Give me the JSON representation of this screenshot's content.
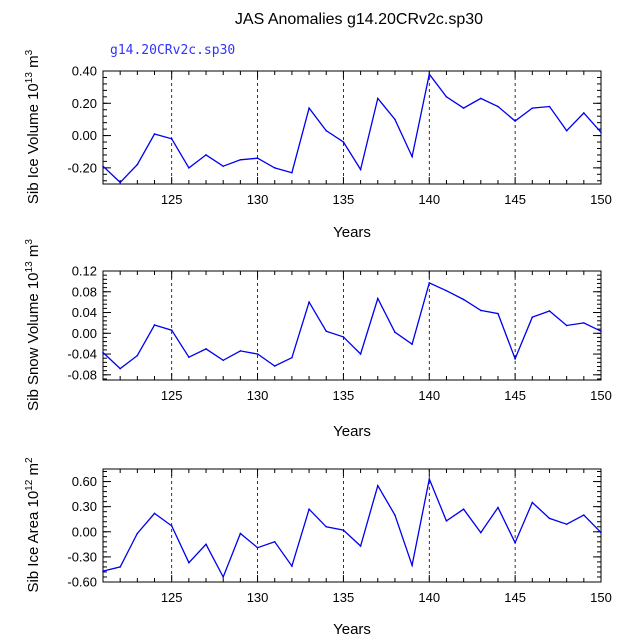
{
  "page_title": "JAS Anomalies g14.20CRv2c.sp30",
  "subtitle": "g14.20CRv2c.sp30",
  "chart_data": [
    {
      "type": "line",
      "xlabel": "Years",
      "ylabel": "Sib Ice Volume 10",
      "ylabel_exp": "13",
      "ylabel_unit": " m",
      "ylabel_unit_exp": "3",
      "xlim": [
        121,
        150
      ],
      "ylim": [
        -0.3,
        0.4
      ],
      "xticks": [
        125,
        130,
        135,
        140,
        145,
        150
      ],
      "yticks": [
        -0.2,
        0.0,
        0.2,
        0.4
      ],
      "ytick_labels": [
        "-0.20",
        "0.00",
        "0.20",
        "0.40"
      ],
      "yminor_step": 0.04,
      "vlines": [
        125,
        130,
        135,
        140,
        145
      ],
      "color": "#0000ee",
      "x": [
        121,
        122,
        123,
        124,
        125,
        126,
        127,
        128,
        129,
        130,
        131,
        132,
        133,
        134,
        135,
        136,
        137,
        138,
        139,
        140,
        141,
        142,
        143,
        144,
        145,
        146,
        147,
        148,
        149,
        150
      ],
      "values": [
        -0.19,
        -0.29,
        -0.18,
        0.01,
        -0.02,
        -0.2,
        -0.12,
        -0.19,
        -0.15,
        -0.14,
        -0.2,
        -0.23,
        0.17,
        0.03,
        -0.04,
        -0.21,
        0.23,
        0.1,
        -0.13,
        0.38,
        0.24,
        0.17,
        0.23,
        0.18,
        0.09,
        0.17,
        0.18,
        0.03,
        0.14,
        0.02
      ]
    },
    {
      "type": "line",
      "xlabel": "Years",
      "ylabel": "Sib Snow Volume 10",
      "ylabel_exp": "13",
      "ylabel_unit": " m",
      "ylabel_unit_exp": "3",
      "xlim": [
        121,
        150
      ],
      "ylim": [
        -0.09,
        0.12
      ],
      "xticks": [
        125,
        130,
        135,
        140,
        145,
        150
      ],
      "yticks": [
        -0.08,
        -0.04,
        0.0,
        0.04,
        0.08,
        0.12
      ],
      "ytick_labels": [
        "-0.08",
        "-0.04",
        "0.00",
        "0.04",
        "0.08",
        "0.12"
      ],
      "yminor_step": 0.008,
      "vlines": [
        125,
        130,
        135,
        140,
        145
      ],
      "color": "#0000ee",
      "x": [
        121,
        122,
        123,
        124,
        125,
        126,
        127,
        128,
        129,
        130,
        131,
        132,
        133,
        134,
        135,
        136,
        137,
        138,
        139,
        140,
        141,
        142,
        143,
        144,
        145,
        146,
        147,
        148,
        149,
        150
      ],
      "values": [
        -0.037,
        -0.068,
        -0.043,
        0.016,
        0.006,
        -0.046,
        -0.03,
        -0.052,
        -0.034,
        -0.04,
        -0.063,
        -0.047,
        0.06,
        0.004,
        -0.007,
        -0.04,
        0.067,
        0.002,
        -0.021,
        0.097,
        0.082,
        0.065,
        0.044,
        0.038,
        -0.049,
        0.031,
        0.043,
        0.015,
        0.02,
        0.004
      ]
    },
    {
      "type": "line",
      "xlabel": "Years",
      "ylabel": "Sib Ice Area 10",
      "ylabel_exp": "12",
      "ylabel_unit": " m",
      "ylabel_unit_exp": "2",
      "xlim": [
        121,
        150
      ],
      "ylim": [
        -0.6,
        0.75
      ],
      "xticks": [
        125,
        130,
        135,
        140,
        145,
        150
      ],
      "yticks": [
        -0.6,
        -0.3,
        0.0,
        0.3,
        0.6
      ],
      "ytick_labels": [
        "-0.60",
        "-0.30",
        "0.00",
        "0.30",
        "0.60"
      ],
      "yminor_step": 0.06,
      "vlines": [
        125,
        130,
        135,
        140,
        145
      ],
      "color": "#0000ee",
      "x": [
        121,
        122,
        123,
        124,
        125,
        126,
        127,
        128,
        129,
        130,
        131,
        132,
        133,
        134,
        135,
        136,
        137,
        138,
        139,
        140,
        141,
        142,
        143,
        144,
        145,
        146,
        147,
        148,
        149,
        150
      ],
      "values": [
        -0.47,
        -0.42,
        -0.02,
        0.22,
        0.07,
        -0.37,
        -0.15,
        -0.54,
        -0.02,
        -0.19,
        -0.12,
        -0.41,
        0.27,
        0.06,
        0.02,
        -0.17,
        0.55,
        0.2,
        -0.4,
        0.63,
        0.13,
        0.27,
        -0.01,
        0.29,
        -0.13,
        0.35,
        0.16,
        0.09,
        0.2,
        -0.01
      ]
    }
  ]
}
